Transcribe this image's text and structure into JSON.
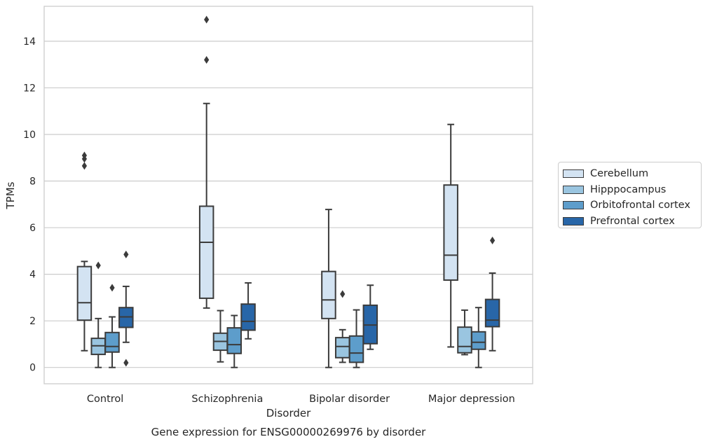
{
  "chart_data": {
    "type": "box",
    "title": "Gene expression for ENSG00000269976 by disorder",
    "xlabel": "Disorder",
    "ylabel": "TPMs",
    "ylim": [
      -0.7,
      15.5
    ],
    "yticks": [
      "0",
      "2",
      "4",
      "6",
      "8",
      "10",
      "12",
      "14"
    ],
    "grid": "horizontal",
    "legend_position": "right",
    "categories": [
      "Control",
      "Schizophrenia",
      "Bipolar disorder",
      "Major depression"
    ],
    "series": [
      {
        "name": "Cerebellum",
        "color": "#d3e3f2",
        "boxes": [
          {
            "whisker_low": 0.72,
            "q1": 2.03,
            "median": 2.78,
            "q3": 4.33,
            "whisker_high": 4.55,
            "outliers": [
              8.65,
              8.95,
              9.1
            ]
          },
          {
            "whisker_low": 2.55,
            "q1": 2.97,
            "median": 5.37,
            "q3": 6.92,
            "whisker_high": 11.33,
            "outliers": [
              13.2,
              14.93
            ]
          },
          {
            "whisker_low": 0.0,
            "q1": 2.1,
            "median": 2.9,
            "q3": 4.12,
            "whisker_high": 6.78,
            "outliers": []
          },
          {
            "whisker_low": 0.88,
            "q1": 3.75,
            "median": 4.82,
            "q3": 7.83,
            "whisker_high": 10.43,
            "outliers": []
          }
        ]
      },
      {
        "name": "Hipppocampus",
        "color": "#9ac5e0",
        "boxes": [
          {
            "whisker_low": 0.0,
            "q1": 0.56,
            "median": 0.93,
            "q3": 1.25,
            "whisker_high": 2.1,
            "outliers": [
              4.38
            ]
          },
          {
            "whisker_low": 0.24,
            "q1": 0.74,
            "median": 1.12,
            "q3": 1.47,
            "whisker_high": 2.44,
            "outliers": []
          },
          {
            "whisker_low": 0.22,
            "q1": 0.42,
            "median": 0.9,
            "q3": 1.28,
            "whisker_high": 1.62,
            "outliers": [
              3.15
            ]
          },
          {
            "whisker_low": 0.55,
            "q1": 0.63,
            "median": 0.9,
            "q3": 1.73,
            "whisker_high": 2.46,
            "outliers": []
          }
        ]
      },
      {
        "name": "Orbitofrontal cortex",
        "color": "#5d9dcb",
        "boxes": [
          {
            "whisker_low": 0.0,
            "q1": 0.66,
            "median": 0.9,
            "q3": 1.5,
            "whisker_high": 2.17,
            "outliers": [
              3.42
            ]
          },
          {
            "whisker_low": 0.0,
            "q1": 0.6,
            "median": 0.98,
            "q3": 1.7,
            "whisker_high": 2.23,
            "outliers": []
          },
          {
            "whisker_low": 0.0,
            "q1": 0.22,
            "median": 0.62,
            "q3": 1.35,
            "whisker_high": 2.47,
            "outliers": []
          },
          {
            "whisker_low": 0.0,
            "q1": 0.78,
            "median": 1.08,
            "q3": 1.53,
            "whisker_high": 2.57,
            "outliers": []
          }
        ]
      },
      {
        "name": "Prefrontal cortex",
        "color": "#2866a8",
        "boxes": [
          {
            "whisker_low": 1.08,
            "q1": 1.72,
            "median": 2.17,
            "q3": 2.57,
            "whisker_high": 3.48,
            "outliers": [
              0.2,
              4.85
            ]
          },
          {
            "whisker_low": 1.23,
            "q1": 1.6,
            "median": 1.98,
            "q3": 2.72,
            "whisker_high": 3.63,
            "outliers": []
          },
          {
            "whisker_low": 0.78,
            "q1": 1.02,
            "median": 1.82,
            "q3": 2.67,
            "whisker_high": 3.53,
            "outliers": []
          },
          {
            "whisker_low": 0.72,
            "q1": 1.75,
            "median": 2.03,
            "q3": 2.92,
            "whisker_high": 4.05,
            "outliers": [
              5.45
            ]
          }
        ]
      }
    ]
  }
}
